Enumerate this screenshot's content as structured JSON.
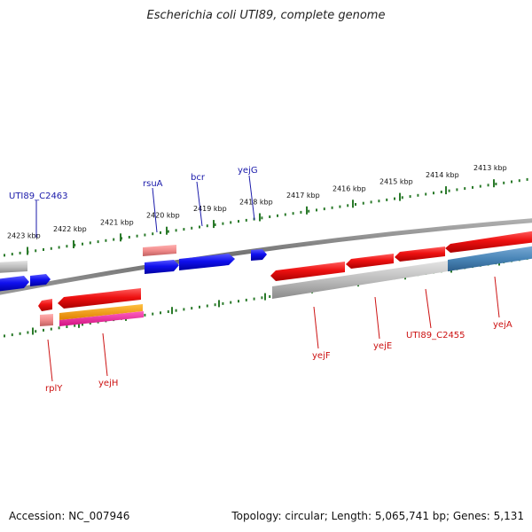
{
  "title": "Escherichia coli UTI89, complete genome",
  "footer": {
    "accession": "Accession: NC_007946",
    "summary": "Topology: circular; Length: 5,065,741 bp; Genes: 5,131"
  },
  "ticks_top": [
    {
      "label": "2413 kbp"
    },
    {
      "label": "2414 kbp"
    },
    {
      "label": "2415 kbp"
    },
    {
      "label": "2416 kbp"
    },
    {
      "label": "2417 kbp"
    },
    {
      "label": "2418 kbp"
    },
    {
      "label": "2419 kbp"
    },
    {
      "label": "2420 kbp"
    },
    {
      "label": "2421 kbp"
    },
    {
      "label": "2422 kbp"
    },
    {
      "label": "2423 kbp"
    }
  ],
  "genes_forward": [
    "UTI89_C2463",
    "rsuA",
    "bcr",
    "yejG"
  ],
  "genes_reverse": [
    "rplY",
    "yejH",
    "yejF",
    "yejE",
    "UTI89_C2455",
    "yejA"
  ],
  "colors": {
    "forward_label": "#1a1aaa",
    "reverse_label": "#cc1111",
    "forward_feature": "#1010ee",
    "reverse_feature": "#ee1111",
    "tick": "#2a7a2a",
    "backbone": "#777777",
    "highlight": "#4a86b8"
  }
}
